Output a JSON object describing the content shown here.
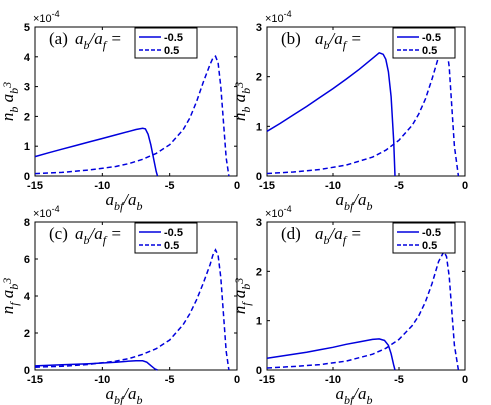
{
  "chart_data": [
    {
      "type": "line",
      "panel_label": "(a)",
      "legend_title": "a_b/a_f =",
      "xlabel": "a_bf/a_b",
      "ylabel": "n_b a_b^3",
      "y_multiplier": "×10",
      "y_multiplier_exp": "-4",
      "xlim": [
        -15,
        0
      ],
      "ylim": [
        0,
        5
      ],
      "xticks": [
        "-15",
        "-10",
        "-5",
        "0"
      ],
      "yticks": [
        "0",
        "1",
        "2",
        "3",
        "4",
        "5"
      ],
      "legend_position": "top-left",
      "series": [
        {
          "name": "-0.5",
          "color": "#0000dd",
          "style": "solid",
          "x": [
            -15,
            -14,
            -13,
            -12,
            -11,
            -10,
            -9,
            -8,
            -7.5,
            -7,
            -6.8,
            -6.6,
            -6.4,
            -6.2,
            -6.0,
            -5.9
          ],
          "y": [
            0.65,
            0.78,
            0.9,
            1.02,
            1.14,
            1.26,
            1.38,
            1.5,
            1.56,
            1.6,
            1.58,
            1.4,
            1.05,
            0.6,
            0.15,
            0.0
          ]
        },
        {
          "name": "0.5",
          "color": "#0000dd",
          "style": "dashed",
          "x": [
            -15,
            -13,
            -11,
            -9,
            -8,
            -7,
            -6,
            -5,
            -4,
            -3.5,
            -3,
            -2.5,
            -2,
            -1.8,
            -1.6,
            -1.4,
            -1.2,
            -1.0,
            -0.8,
            -0.6
          ],
          "y": [
            0.08,
            0.12,
            0.2,
            0.32,
            0.42,
            0.56,
            0.76,
            1.05,
            1.55,
            1.95,
            2.5,
            3.15,
            3.75,
            3.95,
            4.02,
            3.8,
            3.0,
            1.8,
            0.6,
            0.0
          ]
        }
      ]
    },
    {
      "type": "line",
      "panel_label": "(b)",
      "legend_title": "a_b/a_f =",
      "xlabel": "a_bf/a_b",
      "ylabel": "n_b a_b^3",
      "y_multiplier": "×10",
      "y_multiplier_exp": "-4",
      "xlim": [
        -15,
        0
      ],
      "ylim": [
        0,
        3
      ],
      "xticks": [
        "-15",
        "-10",
        "-5",
        "0"
      ],
      "yticks": [
        "0",
        "1",
        "2",
        "3"
      ],
      "legend_position": "top-right",
      "series": [
        {
          "name": "-0.5",
          "color": "#0000dd",
          "style": "solid",
          "x": [
            -15,
            -14,
            -13,
            -12,
            -11,
            -10,
            -9,
            -8,
            -7,
            -6.5,
            -6.2,
            -6.0,
            -5.8,
            -5.6,
            -5.4,
            -5.3
          ],
          "y": [
            0.9,
            1.06,
            1.23,
            1.4,
            1.58,
            1.76,
            1.95,
            2.15,
            2.37,
            2.48,
            2.45,
            2.35,
            2.1,
            1.6,
            0.7,
            0.0
          ]
        },
        {
          "name": "0.5",
          "color": "#0000dd",
          "style": "dashed",
          "x": [
            -15,
            -13,
            -11,
            -9,
            -7,
            -6,
            -5,
            -4,
            -3.5,
            -3,
            -2.5,
            -2,
            -1.6,
            -1.4,
            -1.2,
            -1.0,
            -0.8,
            -0.5
          ],
          "y": [
            0.05,
            0.08,
            0.13,
            0.22,
            0.38,
            0.52,
            0.72,
            1.02,
            1.25,
            1.55,
            1.95,
            2.4,
            2.65,
            2.6,
            2.2,
            1.4,
            0.6,
            0.0
          ]
        }
      ]
    },
    {
      "type": "line",
      "panel_label": "(c)",
      "legend_title": "a_b/a_f =",
      "xlabel": "a_bf/a_b",
      "ylabel": "n_f a_b^3",
      "y_multiplier": "×10",
      "y_multiplier_exp": "-4",
      "xlim": [
        -15,
        0
      ],
      "ylim": [
        0,
        8
      ],
      "xticks": [
        "-15",
        "-10",
        "-5",
        "0"
      ],
      "yticks": [
        "0",
        "2",
        "4",
        "6",
        "8"
      ],
      "legend_position": "top-left",
      "series": [
        {
          "name": "-0.5",
          "color": "#0000dd",
          "style": "solid",
          "x": [
            -15,
            -13,
            -11,
            -9,
            -8,
            -7.5,
            -7,
            -6.7,
            -6.4,
            -6.1,
            -5.9
          ],
          "y": [
            0.22,
            0.28,
            0.34,
            0.42,
            0.48,
            0.5,
            0.5,
            0.42,
            0.24,
            0.06,
            0.0
          ]
        },
        {
          "name": "0.5",
          "color": "#0000dd",
          "style": "dashed",
          "x": [
            -15,
            -13,
            -11,
            -9,
            -8,
            -7,
            -6,
            -5,
            -4,
            -3.5,
            -3,
            -2.5,
            -2,
            -1.8,
            -1.6,
            -1.4,
            -1.2,
            -1.0,
            -0.8,
            -0.6
          ],
          "y": [
            0.15,
            0.2,
            0.3,
            0.48,
            0.62,
            0.85,
            1.15,
            1.62,
            2.45,
            3.05,
            3.8,
            4.7,
            5.7,
            6.2,
            6.5,
            6.2,
            5.0,
            3.0,
            1.0,
            0.0
          ]
        }
      ]
    },
    {
      "type": "line",
      "panel_label": "(d)",
      "legend_title": "a_b/a_f =",
      "xlabel": "a_bf/a_b",
      "ylabel": "n_f a_b^3",
      "y_multiplier": "×10",
      "y_multiplier_exp": "-4",
      "xlim": [
        -15,
        0
      ],
      "ylim": [
        0,
        3
      ],
      "xticks": [
        "-15",
        "-10",
        "-5",
        "0"
      ],
      "yticks": [
        "0",
        "1",
        "2",
        "3"
      ],
      "legend_position": "top-right",
      "series": [
        {
          "name": "-0.5",
          "color": "#0000dd",
          "style": "solid",
          "x": [
            -15,
            -14,
            -13,
            -12,
            -11,
            -10,
            -9,
            -8,
            -7,
            -6.5,
            -6.1,
            -5.8,
            -5.6,
            -5.4,
            -5.3
          ],
          "y": [
            0.24,
            0.28,
            0.32,
            0.36,
            0.41,
            0.46,
            0.52,
            0.57,
            0.62,
            0.63,
            0.6,
            0.5,
            0.33,
            0.1,
            0.0
          ]
        },
        {
          "name": "0.5",
          "color": "#0000dd",
          "style": "dashed",
          "x": [
            -15,
            -13,
            -11,
            -9,
            -7,
            -6,
            -5,
            -4,
            -3.5,
            -3,
            -2.5,
            -2,
            -1.6,
            -1.4,
            -1.2,
            -1.0,
            -0.8,
            -0.5
          ],
          "y": [
            0.04,
            0.07,
            0.11,
            0.18,
            0.32,
            0.44,
            0.62,
            0.9,
            1.1,
            1.38,
            1.75,
            2.2,
            2.4,
            2.3,
            1.9,
            1.2,
            0.5,
            0.0
          ]
        }
      ]
    }
  ]
}
